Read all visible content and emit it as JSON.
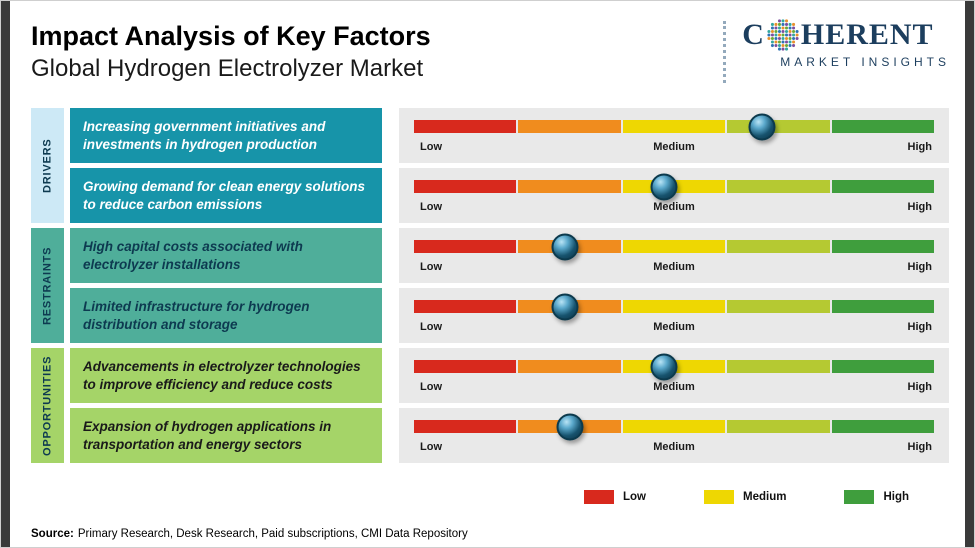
{
  "header": {
    "title": "Impact Analysis of Key Factors",
    "subtitle": "Global Hydrogen Electrolyzer Market",
    "logo": {
      "brand": "COHERENT",
      "brand_left": "C",
      "brand_right": "HERENT",
      "tagline": "MARKET INSIGHTS",
      "brand_color": "#1c3e5e",
      "globe_colors": [
        "#e8912d",
        "#6aaa3a",
        "#2e74b5",
        "#7d4e9f",
        "#35a8a0"
      ]
    }
  },
  "chart_data": {
    "type": "scatter",
    "subtype": "impact-rating-scale",
    "title": "Impact Analysis of Key Factors",
    "subtitle": "Global Hydrogen Electrolyzer Market",
    "scale_labels": [
      "Low",
      "Medium",
      "High"
    ],
    "scale_range": [
      0,
      100
    ],
    "bar_segments": [
      "#d8291d",
      "#f08c1e",
      "#eed702",
      "#b5c932",
      "#3f9e3d"
    ],
    "marker_color": "#0c3a4d",
    "track_background": "#e9e9e9",
    "groups": [
      {
        "name": "DRIVERS",
        "color": "#cde9f6"
      },
      {
        "name": "RESTRAINTS",
        "color": "#4fae9a"
      },
      {
        "name": "OPPORTUNITIES",
        "color": "#a5d468"
      }
    ],
    "rows": [
      {
        "group": "DRIVERS",
        "label": "Increasing government initiatives and investments in hydrogen production",
        "impact_percent": 67,
        "impact_level": "Medium-High"
      },
      {
        "group": "DRIVERS",
        "label": "Growing demand for clean energy solutions to reduce carbon emissions",
        "impact_percent": 48,
        "impact_level": "Medium"
      },
      {
        "group": "RESTRAINTS",
        "label": "High capital costs associated with electrolyzer installations",
        "impact_percent": 29,
        "impact_level": "Low-Medium"
      },
      {
        "group": "RESTRAINTS",
        "label": "Limited infrastructure for hydrogen distribution and storage",
        "impact_percent": 29,
        "impact_level": "Low-Medium"
      },
      {
        "group": "OPPORTUNITIES",
        "label": "Advancements in electrolyzer technologies to improve efficiency and reduce costs",
        "impact_percent": 48,
        "impact_level": "Medium"
      },
      {
        "group": "OPPORTUNITIES",
        "label": "Expansion of hydrogen applications in transportation and energy sectors",
        "impact_percent": 30,
        "impact_level": "Low-Medium"
      }
    ],
    "legend": [
      {
        "label": "Low",
        "color": "#d8291d"
      },
      {
        "label": "Medium",
        "color": "#eed702"
      },
      {
        "label": "High",
        "color": "#3f9e3d"
      }
    ],
    "legend_position": "bottom-right"
  },
  "footer": {
    "source_label": "Source:",
    "source_text": "Primary Research, Desk Research, Paid subscriptions, CMI Data Repository"
  }
}
